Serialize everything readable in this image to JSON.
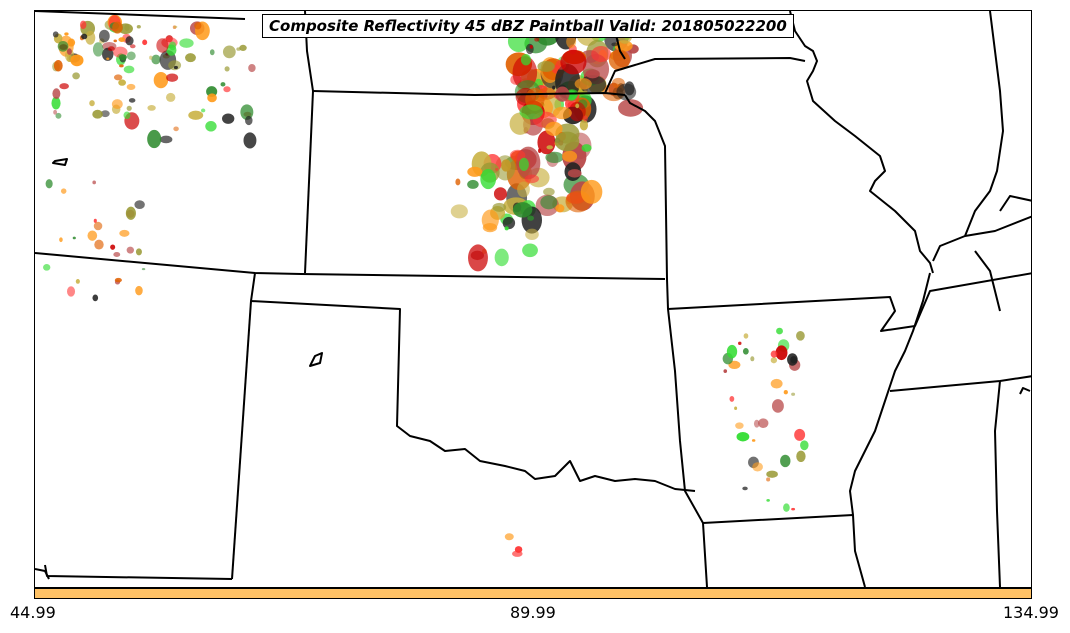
{
  "title": "Composite Reflectivity 45 dBZ Paintball Valid: 201805022200",
  "colorbar": {
    "color": "#ffc266",
    "ticks": [
      "44.99",
      "89.99",
      "134.99"
    ]
  },
  "colors": {
    "paintball": [
      "#ff3333",
      "#e06000",
      "#ff9a1a",
      "#2e8b2e",
      "#33dd33",
      "#b84848",
      "#c8b040",
      "#222222",
      "#cc0000",
      "#999933"
    ]
  }
}
